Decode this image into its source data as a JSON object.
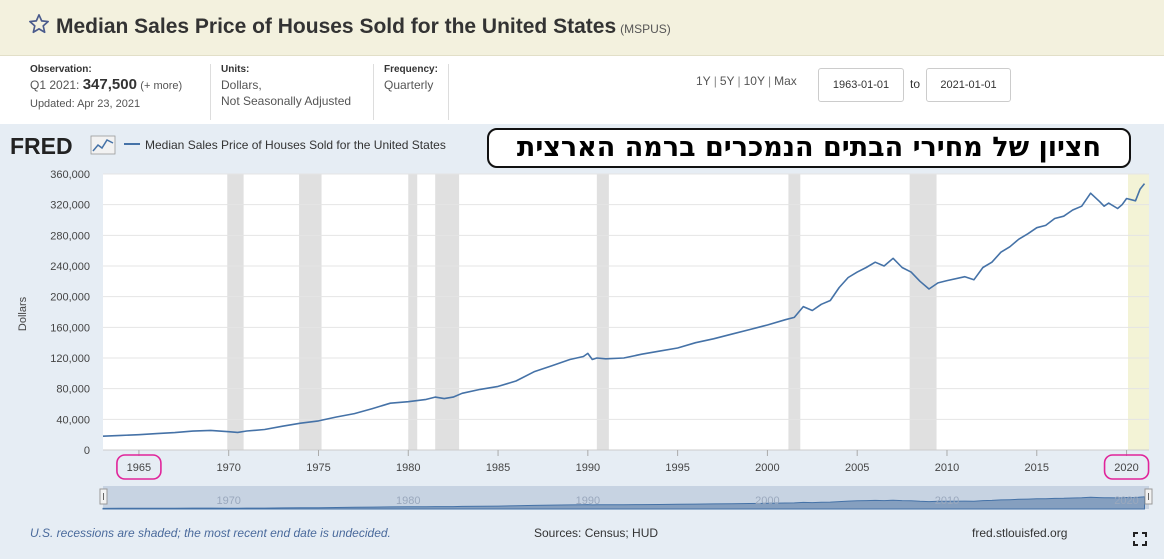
{
  "header": {
    "title": "Median Sales Price of Houses Sold for the United States",
    "series_id": "(MSPUS)"
  },
  "meta": {
    "observation_label": "Observation:",
    "observation_period": "Q1 2021:",
    "observation_value": "347,500",
    "observation_more": "(+ more)",
    "updated": "Updated: Apr 23, 2021",
    "units_label": "Units:",
    "units_line1": "Dollars,",
    "units_line2": "Not Seasonally Adjusted",
    "frequency_label": "Frequency:",
    "frequency_value": "Quarterly"
  },
  "controls": {
    "ranges": [
      "1Y",
      "5Y",
      "10Y",
      "Max"
    ],
    "start_date": "1963-01-01",
    "to_label": "to",
    "end_date": "2021-01-01"
  },
  "overlay_text": "חציון של מחירי הבתים הנמכרים ברמה הארצית",
  "footer": {
    "note": "U.S. recessions are shaded; the most recent end date is undecided.",
    "sources": "Sources: Census; HUD",
    "site": "fred.stlouisfed.org"
  },
  "colors": {
    "line": "#4572a7",
    "recession": "#e0e0e0",
    "highlight_circle": "#e0249a"
  },
  "chart_data": {
    "type": "line",
    "brand": "FRED",
    "legend_label": "Median Sales Price of Houses Sold for the United States",
    "ylabel": "Dollars",
    "xlabel": "",
    "ylim": [
      0,
      360000
    ],
    "xlim": [
      1963.0,
      2021.25
    ],
    "y_ticks": [
      0,
      40000,
      80000,
      120000,
      160000,
      200000,
      240000,
      280000,
      320000,
      360000
    ],
    "y_tick_labels": [
      "0",
      "40,000",
      "80,000",
      "120,000",
      "160,000",
      "200,000",
      "240,000",
      "280,000",
      "320,000",
      "360,000"
    ],
    "x_ticks": [
      1965,
      1970,
      1975,
      1980,
      1985,
      1990,
      1995,
      2000,
      2005,
      2010,
      2015,
      2020
    ],
    "x_tick_labels": [
      "1965",
      "1970",
      "1975",
      "1980",
      "1985",
      "1990",
      "1995",
      "2000",
      "2005",
      "2010",
      "2015",
      "2020"
    ],
    "navigator_ticks": [
      "1970",
      "1980",
      "1990",
      "2000",
      "2010",
      "2020"
    ],
    "highlighted_ticks": [
      "1965",
      "2020"
    ],
    "recessions": [
      [
        1969.92,
        1970.83
      ],
      [
        1973.92,
        1975.17
      ],
      [
        1980.0,
        1980.5
      ],
      [
        1981.5,
        1982.83
      ],
      [
        1990.5,
        1991.17
      ],
      [
        2001.17,
        2001.83
      ],
      [
        2007.92,
        2009.42
      ],
      [
        2020.08,
        2021.25
      ]
    ],
    "series": [
      {
        "x": [
          1963.0,
          1964.0,
          1965.0,
          1966.0,
          1967.0,
          1968.0,
          1969.0,
          1970.0,
          1970.5,
          1971.0,
          1972.0,
          1973.0,
          1974.0,
          1975.0,
          1976.0,
          1977.0,
          1978.0,
          1979.0,
          1980.0,
          1980.5,
          1981.0,
          1981.5,
          1982.0,
          1982.5,
          1983.0,
          1984.0,
          1985.0,
          1986.0,
          1987.0,
          1988.0,
          1989.0,
          1989.75,
          1990.0,
          1990.25,
          1990.5,
          1991.0,
          1992.0,
          1993.0,
          1994.0,
          1995.0,
          1996.0,
          1997.0,
          1998.0,
          1999.0,
          2000.0,
          2001.0,
          2001.5,
          2002.0,
          2002.5,
          2003.0,
          2003.5,
          2004.0,
          2004.5,
          2005.0,
          2005.5,
          2006.0,
          2006.5,
          2007.0,
          2007.5,
          2008.0,
          2008.5,
          2009.0,
          2009.5,
          2010.0,
          2011.0,
          2011.5,
          2012.0,
          2012.5,
          2013.0,
          2013.5,
          2014.0,
          2014.5,
          2015.0,
          2015.5,
          2016.0,
          2016.5,
          2017.0,
          2017.5,
          2018.0,
          2018.5,
          2018.75,
          2019.0,
          2019.5,
          2019.75,
          2020.0,
          2020.5,
          2020.75,
          2021.0
        ],
        "values": [
          18000,
          19000,
          20000,
          21400,
          22700,
          24700,
          25600,
          23900,
          23000,
          24800,
          26800,
          31000,
          35000,
          38000,
          43000,
          47500,
          54000,
          61000,
          63000,
          64500,
          66000,
          69000,
          67000,
          69000,
          74000,
          79000,
          83000,
          90000,
          102000,
          110000,
          118000,
          122000,
          126000,
          118000,
          120000,
          119000,
          120000,
          125000,
          129000,
          133000,
          140000,
          145000,
          151000,
          157000,
          163000,
          170000,
          173000,
          187000,
          182000,
          190000,
          195000,
          212000,
          225000,
          232000,
          238000,
          245000,
          240000,
          250000,
          238000,
          232000,
          220000,
          210000,
          218000,
          221000,
          226000,
          222000,
          238000,
          245000,
          258000,
          265000,
          275000,
          282000,
          290000,
          293000,
          302000,
          305000,
          313000,
          318000,
          335000,
          324000,
          318000,
          322000,
          315000,
          320000,
          328000,
          325000,
          340000,
          347500
        ]
      }
    ]
  }
}
